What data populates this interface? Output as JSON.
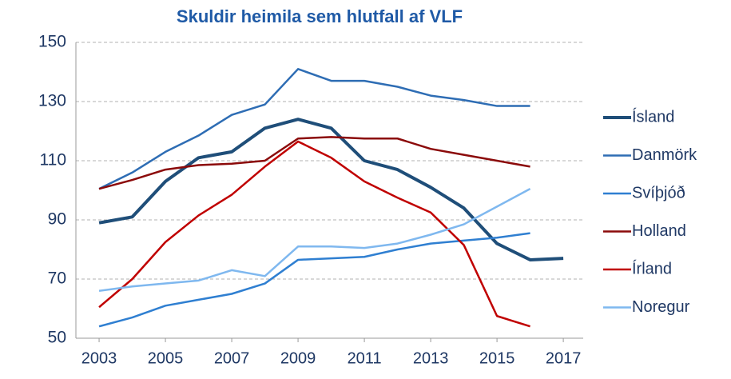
{
  "chart_data": {
    "type": "line",
    "title": "Skuldir heimila sem hlutfall af VLF",
    "x": [
      2003,
      2004,
      2005,
      2006,
      2007,
      2008,
      2009,
      2010,
      2011,
      2012,
      2013,
      2014,
      2015,
      2016,
      2017
    ],
    "series": [
      {
        "name": "Ísland",
        "color": "#1f4e79",
        "width": 4,
        "values": [
          89,
          91,
          103,
          111,
          113,
          121,
          124,
          121,
          110,
          107,
          101,
          94,
          82,
          76.5,
          77
        ]
      },
      {
        "name": "Danmörk",
        "color": "#2e6db4",
        "width": 2.5,
        "values": [
          100.5,
          106,
          113,
          118.5,
          125.5,
          129,
          141,
          137,
          137,
          135,
          132,
          130.5,
          128.5,
          128.5,
          null
        ]
      },
      {
        "name": "Svíþjóð",
        "color": "#2f7fd1",
        "width": 2.5,
        "values": [
          54,
          57,
          61,
          63,
          65,
          68.5,
          76.5,
          77,
          77.5,
          80,
          82,
          83,
          84,
          85.5,
          null
        ]
      },
      {
        "name": "Holland",
        "color": "#8b0a0a",
        "width": 2.5,
        "values": [
          100.5,
          103.5,
          107,
          108.5,
          109,
          110,
          117.5,
          118,
          117.5,
          117.5,
          114,
          112,
          110,
          108,
          null
        ]
      },
      {
        "name": "Írland",
        "color": "#c00000",
        "width": 2.5,
        "values": [
          60.5,
          70,
          82.5,
          91.5,
          98.5,
          108,
          116.5,
          111,
          103,
          97.5,
          92.5,
          81.5,
          57.5,
          54,
          null
        ]
      },
      {
        "name": "Noregur",
        "color": "#7fb8ef",
        "width": 2.5,
        "values": [
          66,
          67.5,
          68.5,
          69.5,
          73,
          71,
          81,
          81,
          80.5,
          82,
          85,
          88.5,
          94.5,
          100.5,
          null
        ]
      }
    ],
    "xlim": [
      2002.3,
      2017.6
    ],
    "xticks": [
      2003,
      2005,
      2007,
      2009,
      2011,
      2013,
      2015,
      2017
    ],
    "ylim": [
      50,
      150
    ],
    "yticks": [
      50,
      70,
      90,
      110,
      130,
      150
    ],
    "grid": true,
    "legend": "right"
  }
}
